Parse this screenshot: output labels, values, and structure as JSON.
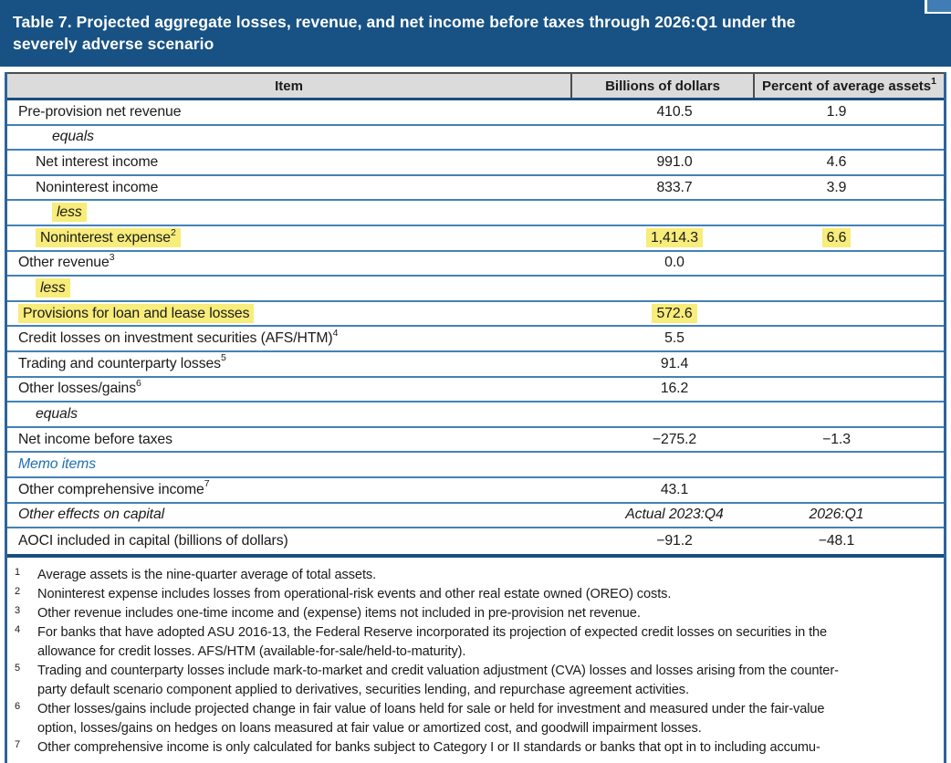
{
  "header": {
    "title_lines": [
      "Table 7. Projected aggregate losses, revenue, and net income before taxes through 2026:Q1 under the",
      "severely adverse scenario"
    ]
  },
  "table": {
    "columns": [
      {
        "label": "Item",
        "sup": ""
      },
      {
        "label": "Billions of dollars",
        "sup": ""
      },
      {
        "label": "Percent of average assets",
        "sup": "1"
      }
    ],
    "rows": [
      {
        "label": "Pre-provision net revenue",
        "sup": "",
        "billions": "410.5",
        "percent": "1.9",
        "indent": 0,
        "italic": false,
        "label_highlight": false,
        "value_highlight": false,
        "memo": false,
        "values_italic": false
      },
      {
        "label": "equals",
        "sup": "",
        "billions": "",
        "percent": "",
        "indent": 2,
        "italic": true,
        "label_highlight": false,
        "value_highlight": false,
        "memo": false,
        "values_italic": false
      },
      {
        "label": "Net interest income",
        "sup": "",
        "billions": "991.0",
        "percent": "4.6",
        "indent": 1,
        "italic": false,
        "label_highlight": false,
        "value_highlight": false,
        "memo": false,
        "values_italic": false
      },
      {
        "label": "Noninterest income",
        "sup": "",
        "billions": "833.7",
        "percent": "3.9",
        "indent": 1,
        "italic": false,
        "label_highlight": false,
        "value_highlight": false,
        "memo": false,
        "values_italic": false
      },
      {
        "label": "less",
        "sup": "",
        "billions": "",
        "percent": "",
        "indent": 2,
        "italic": true,
        "label_highlight": true,
        "value_highlight": false,
        "memo": false,
        "values_italic": false
      },
      {
        "label": "Noninterest expense",
        "sup": "2",
        "billions": "1,414.3",
        "percent": "6.6",
        "indent": 1,
        "italic": false,
        "label_highlight": true,
        "value_highlight": true,
        "memo": false,
        "values_italic": false
      },
      {
        "label": "Other revenue",
        "sup": "3",
        "billions": "0.0",
        "percent": "",
        "indent": 0,
        "italic": false,
        "label_highlight": false,
        "value_highlight": false,
        "memo": false,
        "values_italic": false
      },
      {
        "label": "less",
        "sup": "",
        "billions": "",
        "percent": "",
        "indent": 1,
        "italic": true,
        "label_highlight": true,
        "value_highlight": false,
        "memo": false,
        "values_italic": false
      },
      {
        "label": "Provisions for loan and lease losses",
        "sup": "",
        "billions": "572.6",
        "percent": "",
        "indent": 0,
        "italic": false,
        "label_highlight": true,
        "value_highlight": true,
        "memo": false,
        "values_italic": false
      },
      {
        "label": "Credit losses on investment securities (AFS/HTM)",
        "sup": "4",
        "billions": "5.5",
        "percent": "",
        "indent": 0,
        "italic": false,
        "label_highlight": false,
        "value_highlight": false,
        "memo": false,
        "values_italic": false
      },
      {
        "label": "Trading and counterparty losses",
        "sup": "5",
        "billions": "91.4",
        "percent": "",
        "indent": 0,
        "italic": false,
        "label_highlight": false,
        "value_highlight": false,
        "memo": false,
        "values_italic": false
      },
      {
        "label": "Other losses/gains",
        "sup": "6",
        "billions": "16.2",
        "percent": "",
        "indent": 0,
        "italic": false,
        "label_highlight": false,
        "value_highlight": false,
        "memo": false,
        "values_italic": false
      },
      {
        "label": "equals",
        "sup": "",
        "billions": "",
        "percent": "",
        "indent": 1,
        "italic": true,
        "label_highlight": false,
        "value_highlight": false,
        "memo": false,
        "values_italic": false
      },
      {
        "label": "Net income before taxes",
        "sup": "",
        "billions": "−275.2",
        "percent": "−1.3",
        "indent": 0,
        "italic": false,
        "label_highlight": false,
        "value_highlight": false,
        "memo": false,
        "values_italic": false
      },
      {
        "label": "Memo items",
        "sup": "",
        "billions": "",
        "percent": "",
        "indent": 0,
        "italic": true,
        "label_highlight": false,
        "value_highlight": false,
        "memo": true,
        "values_italic": false
      },
      {
        "label": "Other comprehensive income",
        "sup": "7",
        "billions": "43.1",
        "percent": "",
        "indent": 0,
        "italic": false,
        "label_highlight": false,
        "value_highlight": false,
        "memo": false,
        "values_italic": false
      },
      {
        "label": "Other effects on capital",
        "sup": "",
        "billions": "Actual 2023:Q4",
        "percent": "2026:Q1",
        "indent": 0,
        "italic": true,
        "label_highlight": false,
        "value_highlight": false,
        "memo": false,
        "values_italic": true
      },
      {
        "label": "AOCI included in capital (billions of dollars)",
        "sup": "",
        "billions": "−91.2",
        "percent": "−48.1",
        "indent": 0,
        "italic": false,
        "label_highlight": false,
        "value_highlight": false,
        "memo": false,
        "values_italic": false
      }
    ]
  },
  "footnotes": [
    {
      "num": "1",
      "lines": [
        "Average assets is the nine-quarter average of total assets."
      ]
    },
    {
      "num": "2",
      "lines": [
        "Noninterest expense includes losses from operational-risk events and other real estate owned (OREO) costs."
      ]
    },
    {
      "num": "3",
      "lines": [
        "Other revenue includes one-time income and (expense) items not included in pre-provision net revenue."
      ]
    },
    {
      "num": "4",
      "lines": [
        "For banks that have adopted ASU 2016-13, the Federal Reserve incorporated its projection of expected credit losses on securities in the",
        "allowance for credit losses. AFS/HTM (available-for-sale/held-to-maturity)."
      ]
    },
    {
      "num": "5",
      "lines": [
        "Trading and counterparty losses include mark-to-market and credit valuation adjustment (CVA) losses and losses arising from the counter-",
        "party default scenario component applied to derivatives, securities lending, and repurchase agreement activities."
      ]
    },
    {
      "num": "6",
      "lines": [
        "Other losses/gains include projected change in fair value of loans held for sale or held for investment and measured under the fair-value",
        "option, losses/gains on hedges on loans measured at fair value or amortized cost, and goodwill impairment losses."
      ]
    },
    {
      "num": "7",
      "lines": [
        "Other comprehensive income is only calculated for banks subject to Category I or II standards or banks that opt in to including accumu-"
      ]
    }
  ],
  "colors": {
    "title_bar": "#185284",
    "corner_accent": "#3f7db4",
    "column_header_bg": "#dbdbdb",
    "frame_navy": "#1b4e7e",
    "row_divider_blue": "#4381b5",
    "highlight_yellow": "#f8ec7a",
    "memo_text_blue": "#1f6fb2"
  }
}
